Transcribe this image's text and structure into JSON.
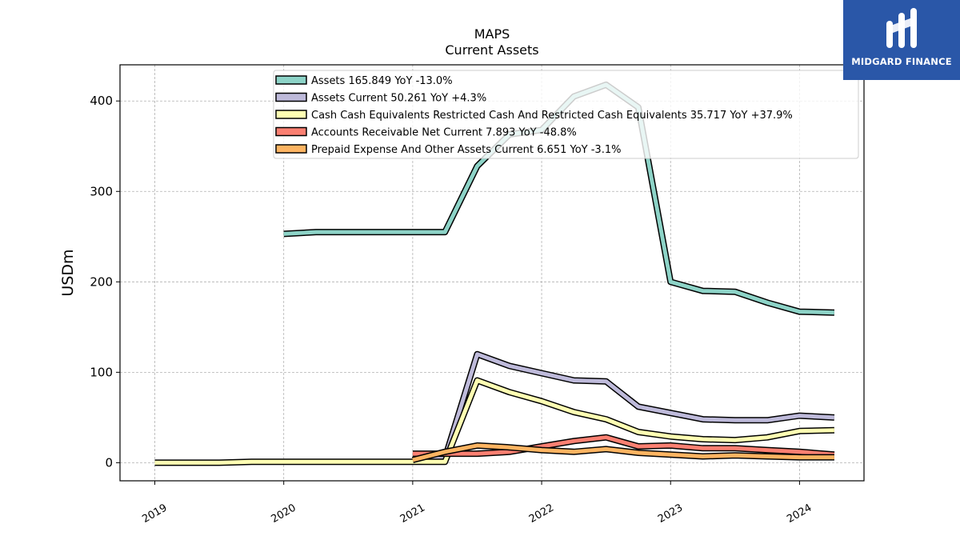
{
  "chart_data": {
    "type": "line",
    "title": "MAPS",
    "subtitle": "Current  Assets",
    "xlabel": "",
    "ylabel": "USDm",
    "xlim": [
      2018.73,
      2024.5
    ],
    "ylim": [
      -20,
      440
    ],
    "yticks": [
      0,
      100,
      200,
      300,
      400
    ],
    "xticks": [
      2019,
      2020,
      2021,
      2022,
      2023,
      2024
    ],
    "xtick_labels": [
      "2019",
      "2020",
      "2021",
      "2022",
      "2023",
      "2024"
    ],
    "grid": true,
    "legend_position": "top-center",
    "series": [
      {
        "name": "Assets  165.849 YoY -13.0%",
        "color": "#8dd3c7",
        "x": [
          2020.0,
          2020.25,
          2020.5,
          2020.75,
          2021.0,
          2021.25,
          2021.5,
          2021.75,
          2022.0,
          2022.25,
          2022.5,
          2022.75,
          2023.0,
          2023.25,
          2023.5,
          2023.75,
          2024.0,
          2024.27
        ],
        "values": [
          253,
          255,
          255,
          255,
          255,
          255,
          328,
          363,
          368,
          405,
          418,
          393,
          200,
          190,
          189,
          177,
          167,
          166
        ]
      },
      {
        "name": "Assets Current  50.261 YoY +4.3%",
        "color": "#bebada",
        "x": [
          2021.0,
          2021.25,
          2021.5,
          2021.75,
          2022.0,
          2022.25,
          2022.5,
          2022.75,
          2023.0,
          2023.25,
          2023.5,
          2023.75,
          2024.0,
          2024.27
        ],
        "values": [
          5,
          5,
          120,
          107,
          99,
          91,
          90,
          62,
          55,
          48,
          47,
          47,
          52,
          50
        ]
      },
      {
        "name": "Cash Cash Equivalents Restricted Cash And Restricted Cash Equivalents  35.717 YoY +37.9%",
        "color": "#ffffb3",
        "x": [
          2019.0,
          2019.5,
          2019.75,
          2020.0,
          2020.5,
          2021.0,
          2021.25,
          2021.5,
          2021.75,
          2022.0,
          2022.25,
          2022.5,
          2022.75,
          2023.0,
          2023.25,
          2023.5,
          2023.75,
          2024.0,
          2024.27
        ],
        "values": [
          0,
          0,
          1,
          1,
          1,
          1,
          1,
          91,
          78,
          68,
          56,
          48,
          34,
          29,
          26,
          25,
          28,
          35,
          36
        ]
      },
      {
        "name": "Accounts Receivable Net Current  7.893 YoY -48.8%",
        "color": "#fb8072",
        "x": [
          2021.0,
          2021.25,
          2021.5,
          2021.75,
          2022.0,
          2022.25,
          2022.5,
          2022.75,
          2023.0,
          2023.25,
          2023.5,
          2023.75,
          2024.0,
          2024.27
        ],
        "values": [
          10,
          10,
          10,
          12,
          18,
          24,
          28,
          18,
          19,
          16,
          16,
          14,
          12,
          9
        ]
      },
      {
        "name": "Prepaid Expense And Other Assets Current  6.651 YoY -3.1%",
        "color": "#fdb462",
        "x": [
          2021.0,
          2021.25,
          2021.5,
          2021.75,
          2022.0,
          2022.25,
          2022.5,
          2022.75,
          2023.0,
          2023.25,
          2023.5,
          2023.75,
          2024.0,
          2024.27
        ],
        "values": [
          3,
          12,
          19,
          17,
          14,
          12,
          15,
          11,
          9,
          7,
          8,
          7,
          6,
          6
        ]
      }
    ]
  },
  "logo": {
    "text": "MIDGARD FINANCE",
    "background": "#2a57a8"
  }
}
